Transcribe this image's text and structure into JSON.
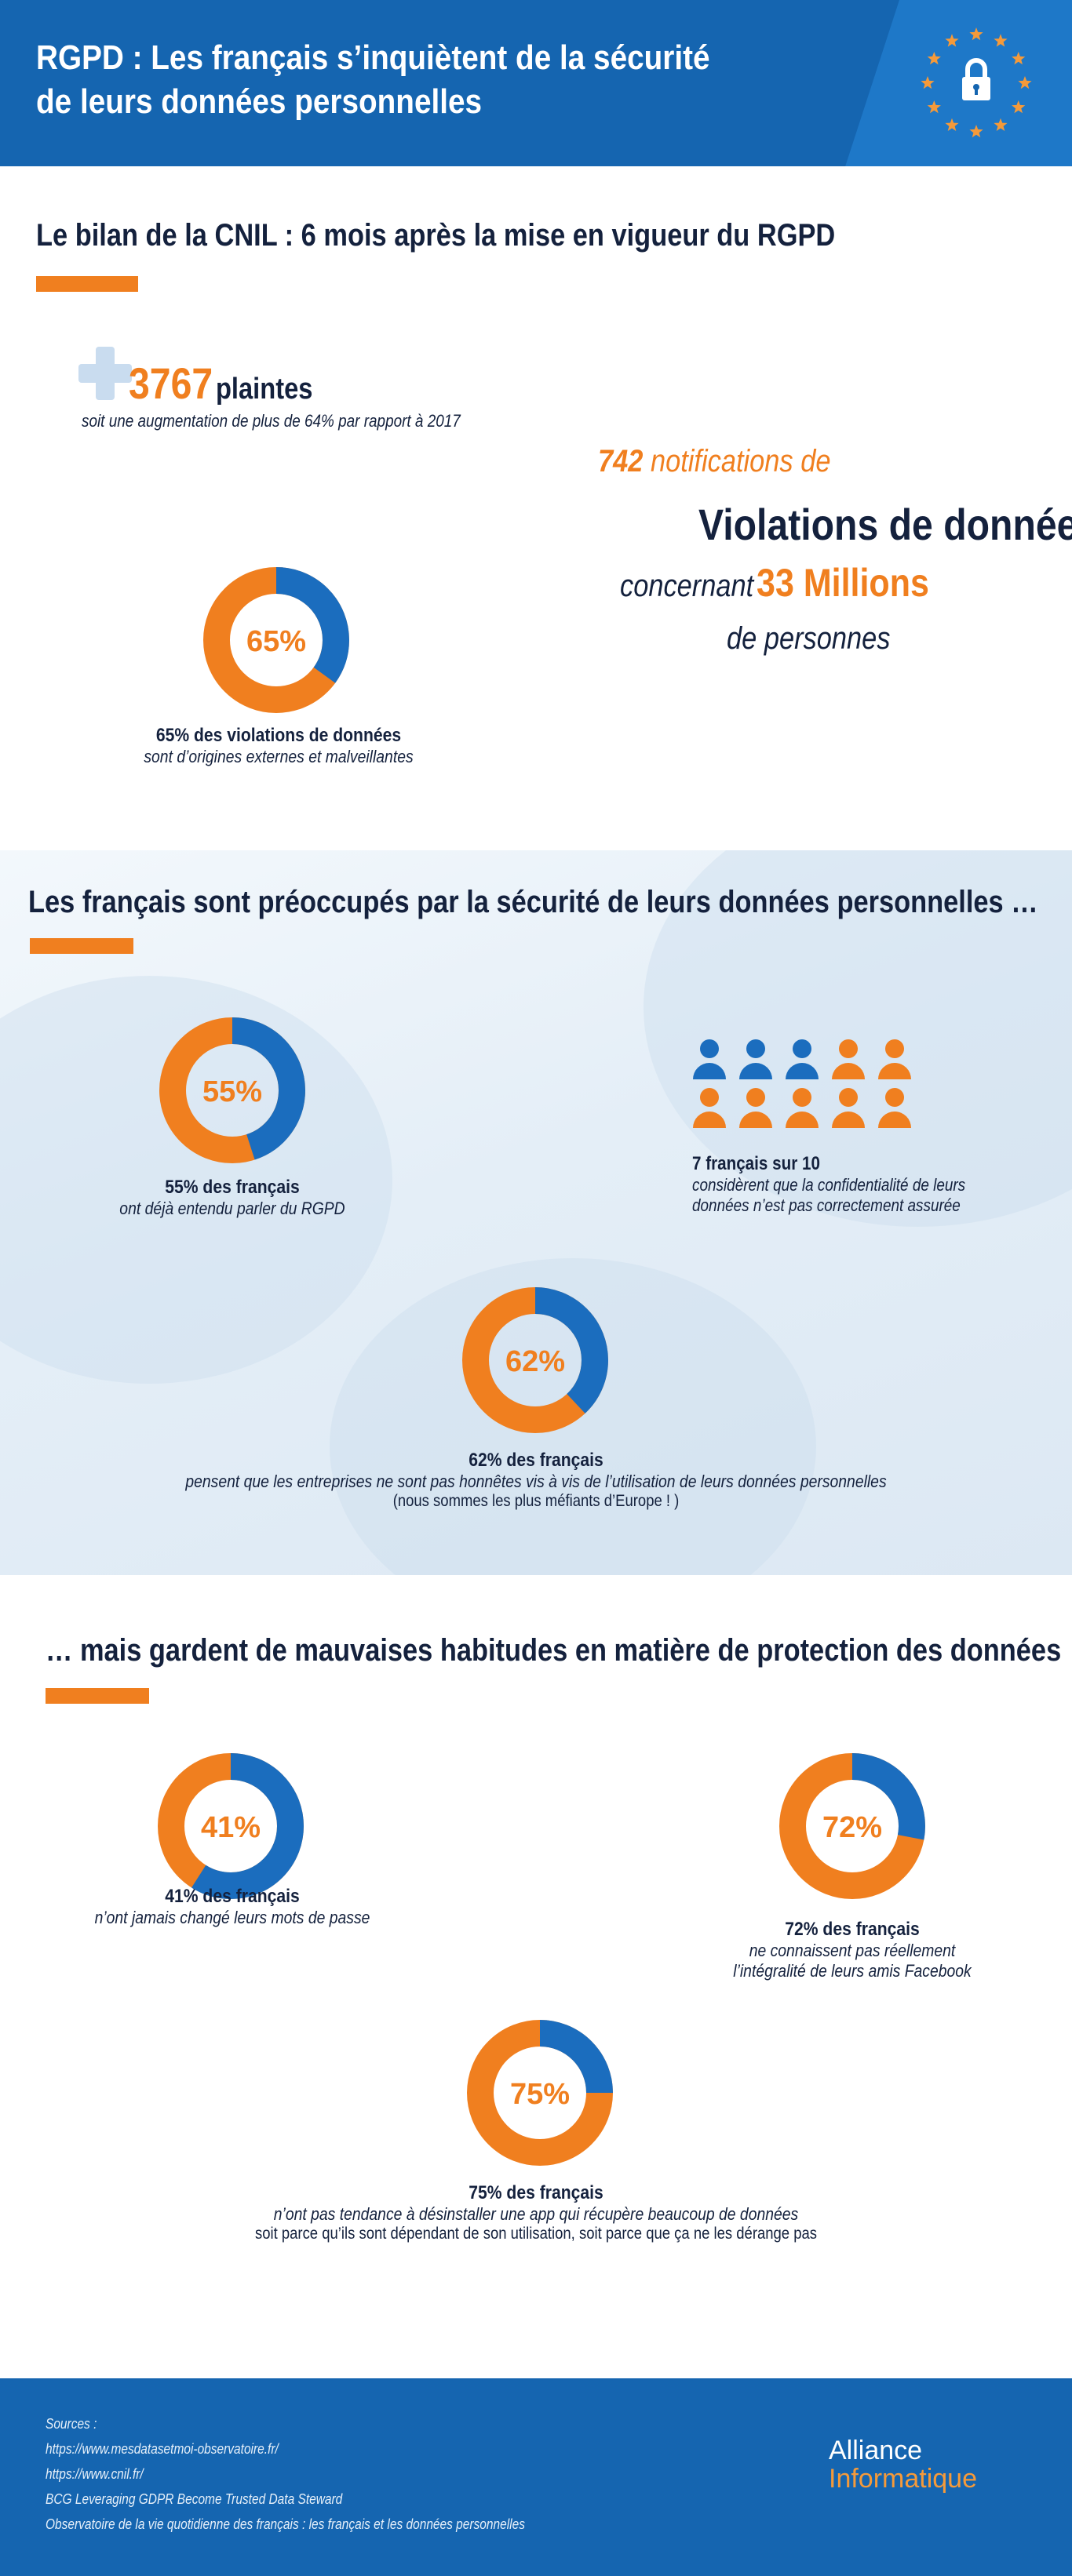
{
  "header": {
    "title_line1": "RGPD : Les français s’inquiètent de la sécurité",
    "title_line2": "de leurs données personnelles",
    "badge_icon": "eu-stars-lock-icon"
  },
  "section1": {
    "title": "Le bilan de la CNIL : 6 mois après la mise en vigueur du RGPD",
    "complaints_number": "3767",
    "complaints_word": "plaintes",
    "complaints_sub": "soit une augmentation de plus de 64% par rapport à 2017",
    "notifications_number": "742",
    "notifications_text": "notifications de",
    "violations_text": "Violations de données",
    "concerning_text": "concernant",
    "millions_text": "33 Millions",
    "persons_text": "de personnes",
    "donut_label": "65%",
    "donut_value": 65,
    "caption_bold": "65% des violations de données",
    "caption_it": "sont d’origines externes et malveillantes"
  },
  "section2": {
    "title": "Les français sont préoccupés par la sécurité de leurs données personnelles …",
    "donut1_label": "55%",
    "donut1_value": 55,
    "donut1_caption_bold": "55% des français",
    "donut1_caption_it": "ont déjà entendu parler du RGPD",
    "people_caption_bold": "7 français sur 10",
    "people_caption_it1": "considèrent que la confidentialité de leurs",
    "people_caption_it2": "données n’est pas correctement assurée",
    "people_total": 10,
    "people_highlight": 7,
    "donut2_label": "62%",
    "donut2_value": 62,
    "donut2_caption_bold": "62% des français",
    "donut2_caption_it": "pensent que les entreprises ne sont pas honnêtes vis à vis de l’utilisation de leurs données personnelles",
    "donut2_caption_normal": "(nous sommes les plus méfiants d’Europe ! )"
  },
  "section3": {
    "title": "… mais gardent de mauvaises habitudes en matière de protection des données",
    "donut1_label": "41%",
    "donut1_value": 41,
    "donut1_caption_bold": "41% des français",
    "donut1_caption_it": "n’ont jamais changé leurs mots de passe",
    "donut2_label": "72%",
    "donut2_value": 72,
    "donut2_caption_bold": "72% des français",
    "donut2_caption_it1": "ne connaissent pas réellement",
    "donut2_caption_it2": "l’intégralité de leurs amis Facebook",
    "donut3_label": "75%",
    "donut3_value": 75,
    "donut3_caption_bold": "75% des français",
    "donut3_caption_it": "n’ont pas tendance à désinstaller une app qui récupère beaucoup de données",
    "donut3_caption_normal": "soit parce qu’ils sont dépendant de son utilisation, soit parce que ça ne les dérange pas"
  },
  "footer": {
    "sources_label": "Sources :",
    "sources": [
      "https://www.mesdatasetmoi-observatoire.fr/",
      "https://www.cnil.fr/",
      "BCG Leveraging GDPR Become Trusted Data Steward",
      "Observatoire de la vie quotidienne des français : les français et les données personnelles"
    ],
    "logo_line1": "Alliance",
    "logo_line2": "Informatique"
  },
  "colors": {
    "orange": "#f07f1f",
    "blue": "#1b6dbe",
    "navy": "#14213d",
    "header_blue": "#1565b0"
  }
}
